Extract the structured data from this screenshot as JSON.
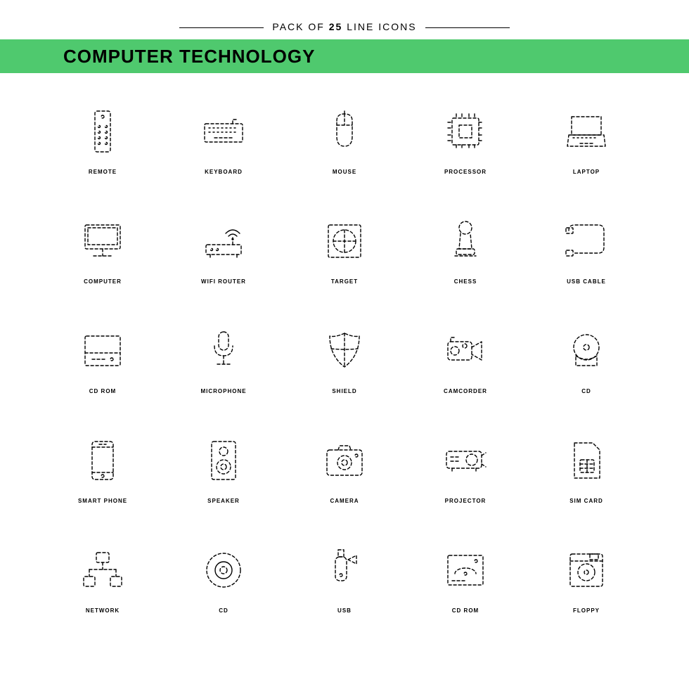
{
  "header": {
    "subtitle_prefix": "PACK OF ",
    "subtitle_bold": "25",
    "subtitle_suffix": " LINE ICONS",
    "title": "Computer Technology"
  },
  "colors": {
    "banner": "#4fc96e",
    "stroke": "#000000",
    "background": "#ffffff"
  },
  "style": {
    "stroke_width": 1.4,
    "dash": "4 3",
    "grid_cols": 5,
    "grid_rows": 5,
    "label_fontsize": 8,
    "title_fontsize": 26
  },
  "icons": [
    {
      "name": "remote",
      "label": "REMOTE"
    },
    {
      "name": "keyboard",
      "label": "KEYBOARD"
    },
    {
      "name": "mouse",
      "label": "MOUSE"
    },
    {
      "name": "processor",
      "label": "PROCESSOR"
    },
    {
      "name": "laptop",
      "label": "LAPTOP"
    },
    {
      "name": "computer",
      "label": "COMPUTER"
    },
    {
      "name": "wifi-router",
      "label": "WIFI ROUTER"
    },
    {
      "name": "target",
      "label": "TARGET"
    },
    {
      "name": "chess",
      "label": "CHESS"
    },
    {
      "name": "usb-cable",
      "label": "USB CABLE"
    },
    {
      "name": "cd-rom",
      "label": "CD ROM"
    },
    {
      "name": "microphone",
      "label": "MICROPHONE"
    },
    {
      "name": "shield",
      "label": "SHIELD"
    },
    {
      "name": "camcorder",
      "label": "CAMCORDER"
    },
    {
      "name": "cd",
      "label": "CD"
    },
    {
      "name": "smart-phone",
      "label": "SMART PHONE"
    },
    {
      "name": "speaker",
      "label": "SPEAKER"
    },
    {
      "name": "camera",
      "label": "CAMERA"
    },
    {
      "name": "projector",
      "label": "PROJECTOR"
    },
    {
      "name": "sim-card",
      "label": "SIM CARD"
    },
    {
      "name": "network",
      "label": "NETWORK"
    },
    {
      "name": "cd2",
      "label": "CD"
    },
    {
      "name": "usb",
      "label": "USB"
    },
    {
      "name": "cd-rom2",
      "label": "CD ROM"
    },
    {
      "name": "floppy",
      "label": "FLOPPY"
    }
  ]
}
